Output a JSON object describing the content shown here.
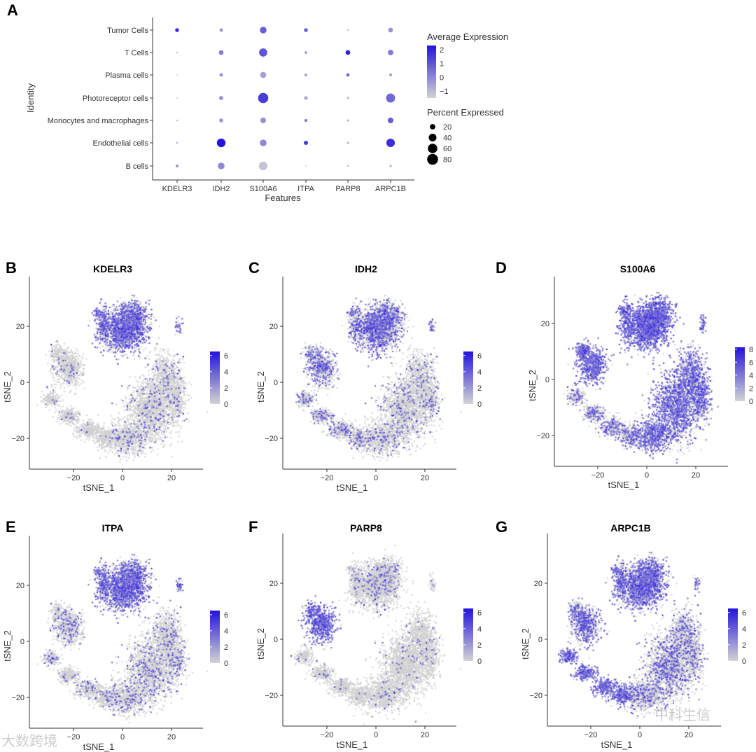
{
  "chart_data": [
    {
      "panel": "A",
      "type": "dotplot",
      "xlabel": "Features",
      "ylabel": "Identity",
      "features": [
        "KDELR3",
        "IDH2",
        "S100A6",
        "ITPA",
        "PARP8",
        "ARPC1B"
      ],
      "identities": [
        "Tumor Cells",
        "T Cells",
        "Plasma cells",
        "Photoreceptor cells",
        "Monocytes and macrophages",
        "Endothelial cells",
        "B cells"
      ],
      "avg_expression": [
        [
          1.8,
          -0.3,
          0.8,
          0.8,
          -1.0,
          -0.2
        ],
        [
          -1.0,
          0.2,
          1.0,
          -0.5,
          2.0,
          0.3
        ],
        [
          -1.0,
          -0.2,
          -0.5,
          -0.5,
          0.5,
          -0.5
        ],
        [
          -1.0,
          -0.3,
          1.5,
          -0.5,
          -0.7,
          0.6
        ],
        [
          -1.0,
          -0.2,
          -0.2,
          0.3,
          -0.7,
          0.8
        ],
        [
          -0.8,
          2.3,
          0.0,
          1.5,
          -0.8,
          1.8
        ],
        [
          -0.3,
          0.0,
          -1.2,
          -1.0,
          -0.8,
          -1.0
        ]
      ],
      "pct_expressed": [
        [
          10,
          8,
          30,
          10,
          2,
          15
        ],
        [
          2,
          15,
          45,
          5,
          15,
          20
        ],
        [
          1,
          8,
          25,
          5,
          8,
          6
        ],
        [
          1,
          12,
          70,
          8,
          3,
          55
        ],
        [
          2,
          10,
          22,
          6,
          3,
          22
        ],
        [
          2,
          50,
          30,
          12,
          3,
          48
        ],
        [
          6,
          30,
          50,
          1,
          2,
          4
        ]
      ],
      "color_legend": {
        "title": "Average Expression",
        "ticks": [
          "2",
          "1",
          "0",
          "−1"
        ],
        "tick_values": [
          2,
          1,
          0,
          -1
        ],
        "range": [
          -1.5,
          2.3
        ],
        "low_color": "#d3d3d3",
        "high_color": "#2314dc"
      },
      "size_legend": {
        "title": "Percent Expressed",
        "ticks": [
          "20",
          "40",
          "60",
          "80"
        ],
        "tick_values": [
          20,
          40,
          60,
          80
        ]
      }
    },
    {
      "panel": "B",
      "type": "scatter",
      "title": "KDELR3",
      "xlabel": "tSNE_1",
      "ylabel": "tSNE_2",
      "xticks": [
        "−20",
        "0",
        "20"
      ],
      "xtick_values": [
        -20,
        0,
        20
      ],
      "yticks": [
        "20",
        "0",
        "−20"
      ],
      "ytick_values": [
        20,
        0,
        -20
      ],
      "colorbar_ticks": [
        "6",
        "4",
        "2",
        "0"
      ],
      "colorbar_values": [
        6,
        4,
        2,
        0
      ],
      "colorbar_max": 6.5,
      "cluster_expression": {
        "top": 0.6,
        "left": 0.05,
        "lower": 0.08,
        "tail": 0.03
      }
    },
    {
      "panel": "C",
      "type": "scatter",
      "title": "IDH2",
      "xlabel": "tSNE_1",
      "ylabel": "tSNE_2",
      "xticks": [
        "−20",
        "0",
        "20"
      ],
      "xtick_values": [
        -20,
        0,
        20
      ],
      "yticks": [
        "20",
        "0",
        "−20"
      ],
      "ytick_values": [
        20,
        0,
        -20
      ],
      "colorbar_ticks": [
        "6",
        "4",
        "2",
        "0"
      ],
      "colorbar_values": [
        6,
        4,
        2,
        0
      ],
      "colorbar_max": 6.5,
      "cluster_expression": {
        "top": 0.45,
        "left": 0.35,
        "lower": 0.1,
        "tail": 0.2
      }
    },
    {
      "panel": "D",
      "type": "scatter",
      "title": "S100A6",
      "xlabel": "tSNE_1",
      "ylabel": "tSNE_2",
      "xticks": [
        "−20",
        "0",
        "20"
      ],
      "xtick_values": [
        -20,
        0,
        20
      ],
      "yticks": [
        "20",
        "0",
        "−20"
      ],
      "ytick_values": [
        20,
        0,
        -20
      ],
      "colorbar_ticks": [
        "8",
        "6",
        "4",
        "2",
        "0"
      ],
      "colorbar_values": [
        8,
        6,
        4,
        2,
        0
      ],
      "colorbar_max": 8.3,
      "cluster_expression": {
        "top": 0.85,
        "left": 0.8,
        "lower": 0.6,
        "tail": 0.3
      }
    },
    {
      "panel": "E",
      "type": "scatter",
      "title": "ITPA",
      "xlabel": "tSNE_1",
      "ylabel": "tSNE_2",
      "xticks": [
        "−20",
        "0",
        "20"
      ],
      "xtick_values": [
        -20,
        0,
        20
      ],
      "yticks": [
        "20",
        "0",
        "−20"
      ],
      "ytick_values": [
        20,
        0,
        -20
      ],
      "colorbar_ticks": [
        "6",
        "4",
        "2",
        "0"
      ],
      "colorbar_values": [
        6,
        4,
        2,
        0
      ],
      "colorbar_max": 6.5,
      "cluster_expression": {
        "top": 0.6,
        "left": 0.15,
        "lower": 0.12,
        "tail": 0.1
      }
    },
    {
      "panel": "F",
      "type": "scatter",
      "title": "PARP8",
      "xlabel": "tSNE_1",
      "ylabel": "tSNE_2",
      "xticks": [
        "−20",
        "0",
        "20"
      ],
      "xtick_values": [
        -20,
        0,
        20
      ],
      "yticks": [
        "20",
        "0",
        "−20"
      ],
      "ytick_values": [
        20,
        0,
        -20
      ],
      "colorbar_ticks": [
        "6",
        "4",
        "2",
        "0"
      ],
      "colorbar_values": [
        6,
        4,
        2,
        0
      ],
      "colorbar_max": 6.5,
      "cluster_expression": {
        "top": 0.08,
        "left": 0.75,
        "lower": 0.03,
        "tail": 0.03
      }
    },
    {
      "panel": "G",
      "type": "scatter",
      "title": "ARPC1B",
      "xlabel": "tSNE_1",
      "ylabel": "tSNE_2",
      "xticks": [
        "−20",
        "0",
        "20"
      ],
      "xtick_values": [
        -20,
        0,
        20
      ],
      "yticks": [
        "20",
        "0",
        "−20"
      ],
      "ytick_values": [
        20,
        0,
        -20
      ],
      "colorbar_ticks": [
        "6",
        "4",
        "2",
        "0"
      ],
      "colorbar_values": [
        6,
        4,
        2,
        0
      ],
      "colorbar_max": 6.5,
      "cluster_expression": {
        "top": 0.6,
        "left": 0.5,
        "lower": 0.25,
        "tail": 0.75
      }
    }
  ],
  "watermarks": [
    "大数跨境",
    "中科生信"
  ]
}
